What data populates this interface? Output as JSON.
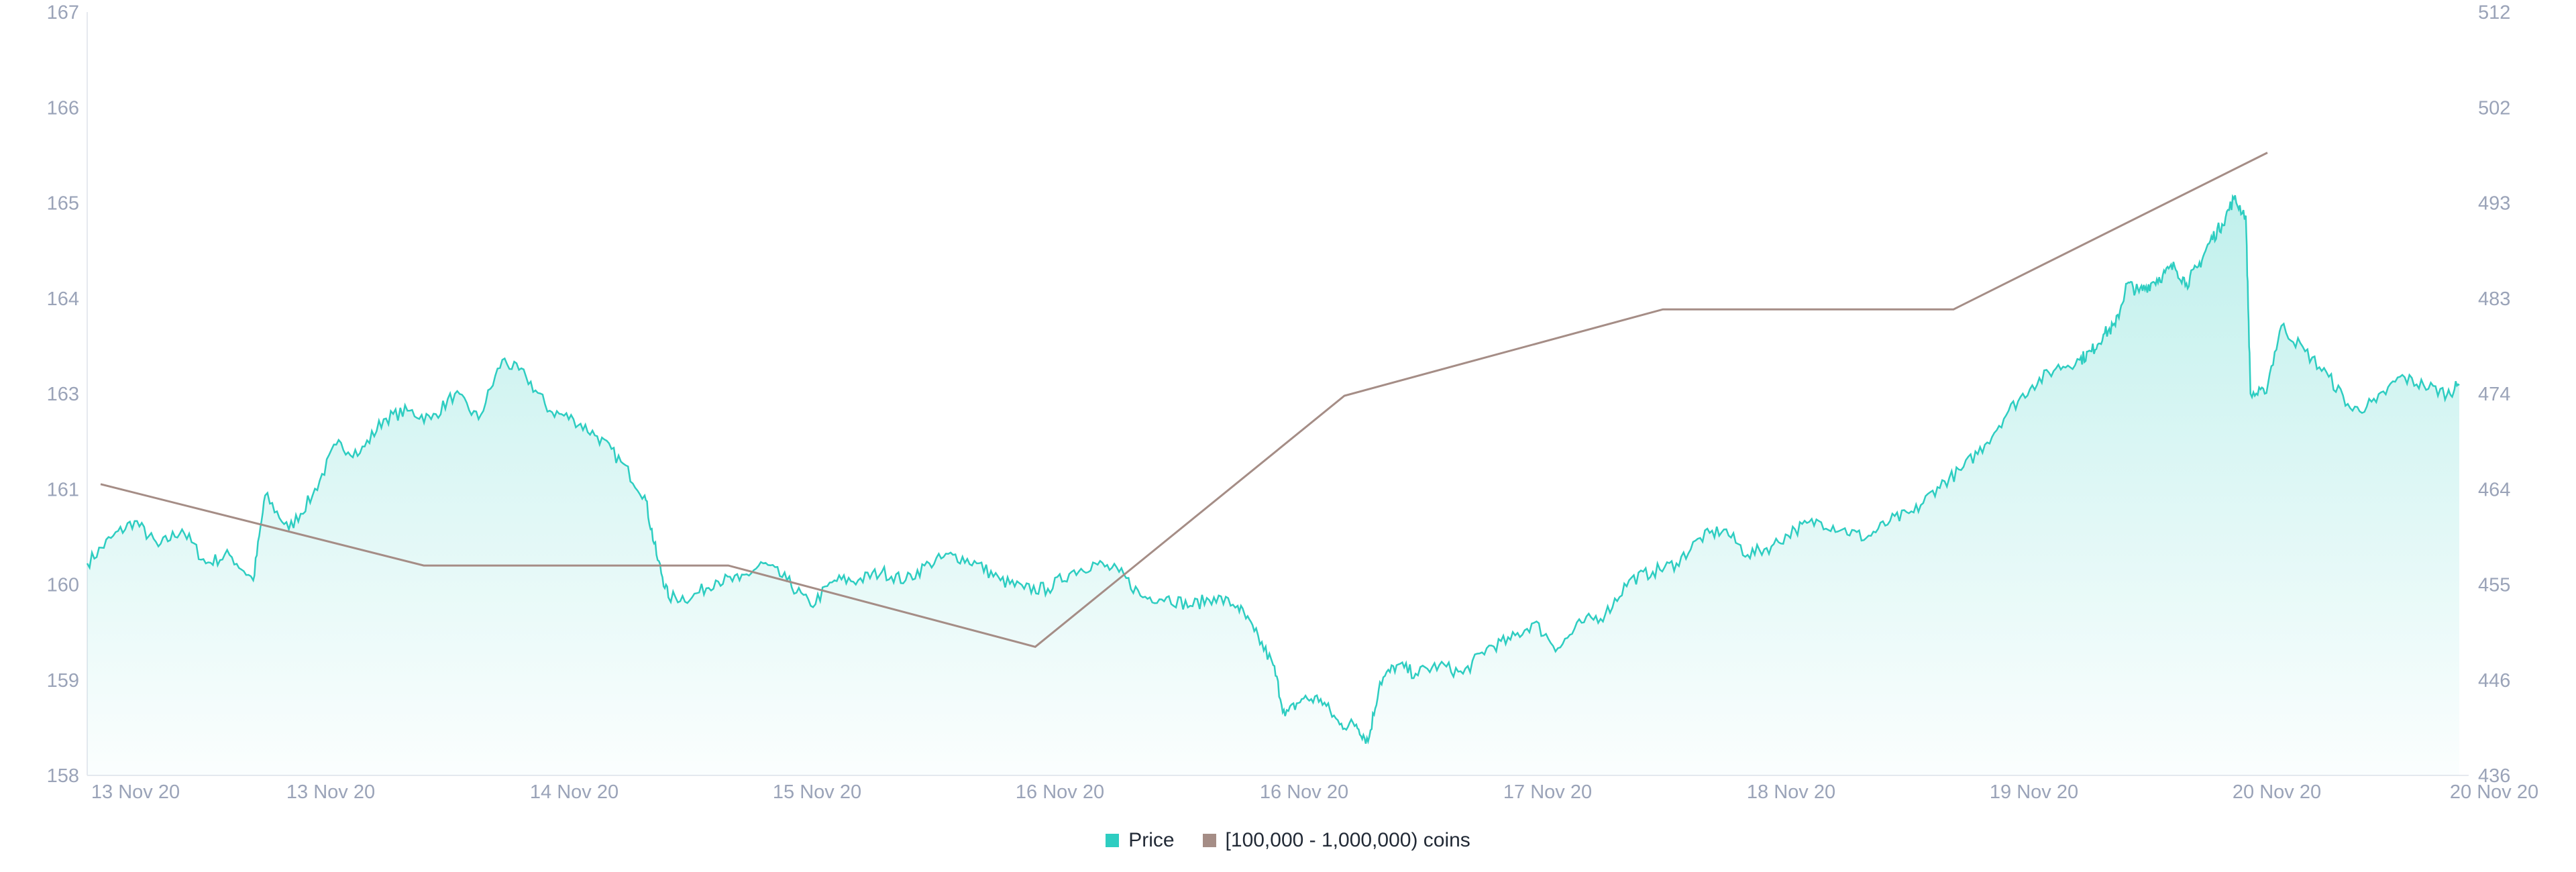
{
  "colors": {
    "price": "#2ecdc1",
    "coins": "#a58d86",
    "axis_text": "#9aa3b8",
    "axis_line": "#e6e9ef"
  },
  "legend": {
    "price_label": "Price",
    "coins_label": "[100,000  - 1,000,000) coins"
  },
  "chart_data": {
    "type": "line",
    "grid": false,
    "legend_position": "bottom-center",
    "x_tick_labels": [
      "13 Nov 20",
      "13 Nov 20",
      "14 Nov 20",
      "15 Nov 20",
      "16 Nov 20",
      "16 Nov 20",
      "17 Nov 20",
      "18 Nov 20",
      "19 Nov 20",
      "20 Nov 20",
      "20 Nov 20"
    ],
    "x_range": [
      0,
      1
    ],
    "y_left": {
      "tick_labels": [
        "167",
        "166",
        "165",
        "164",
        "163",
        "161",
        "160",
        "159",
        "158"
      ],
      "range": [
        158,
        167
      ]
    },
    "y_right": {
      "tick_labels": [
        "512",
        "502",
        "493",
        "483",
        "474",
        "464",
        "455",
        "446",
        "436"
      ],
      "range": [
        436,
        512
      ]
    },
    "series": [
      {
        "name": "Price",
        "axis": "left",
        "style": "area",
        "points": [
          [
            0.0,
            160.5
          ],
          [
            0.01,
            160.8
          ],
          [
            0.02,
            161.0
          ],
          [
            0.03,
            160.7
          ],
          [
            0.04,
            160.9
          ],
          [
            0.05,
            160.5
          ],
          [
            0.06,
            160.6
          ],
          [
            0.07,
            160.3
          ],
          [
            0.075,
            161.3
          ],
          [
            0.085,
            160.9
          ],
          [
            0.095,
            161.3
          ],
          [
            0.105,
            161.9
          ],
          [
            0.115,
            161.8
          ],
          [
            0.125,
            162.2
          ],
          [
            0.135,
            162.3
          ],
          [
            0.145,
            162.2
          ],
          [
            0.155,
            162.5
          ],
          [
            0.165,
            162.2
          ],
          [
            0.175,
            162.9
          ],
          [
            0.185,
            162.7
          ],
          [
            0.195,
            162.3
          ],
          [
            0.205,
            162.2
          ],
          [
            0.215,
            162.0
          ],
          [
            0.225,
            161.7
          ],
          [
            0.235,
            161.3
          ],
          [
            0.24,
            160.6
          ],
          [
            0.245,
            160.1
          ],
          [
            0.255,
            160.1
          ],
          [
            0.265,
            160.3
          ],
          [
            0.275,
            160.3
          ],
          [
            0.285,
            160.5
          ],
          [
            0.295,
            160.3
          ],
          [
            0.305,
            160.0
          ],
          [
            0.315,
            160.3
          ],
          [
            0.325,
            160.3
          ],
          [
            0.335,
            160.4
          ],
          [
            0.345,
            160.3
          ],
          [
            0.355,
            160.5
          ],
          [
            0.365,
            160.6
          ],
          [
            0.375,
            160.5
          ],
          [
            0.385,
            160.3
          ],
          [
            0.395,
            160.2
          ],
          [
            0.405,
            160.2
          ],
          [
            0.415,
            160.4
          ],
          [
            0.425,
            160.5
          ],
          [
            0.435,
            160.4
          ],
          [
            0.445,
            160.1
          ],
          [
            0.455,
            160.1
          ],
          [
            0.465,
            160.0
          ],
          [
            0.475,
            160.1
          ],
          [
            0.485,
            160.0
          ],
          [
            0.492,
            159.7
          ],
          [
            0.5,
            159.3
          ],
          [
            0.505,
            158.7
          ],
          [
            0.512,
            158.9
          ],
          [
            0.52,
            158.9
          ],
          [
            0.528,
            158.6
          ],
          [
            0.535,
            158.6
          ],
          [
            0.54,
            158.4
          ],
          [
            0.545,
            159.1
          ],
          [
            0.552,
            159.3
          ],
          [
            0.56,
            159.2
          ],
          [
            0.57,
            159.3
          ],
          [
            0.58,
            159.2
          ],
          [
            0.59,
            159.5
          ],
          [
            0.6,
            159.6
          ],
          [
            0.61,
            159.8
          ],
          [
            0.62,
            159.5
          ],
          [
            0.63,
            159.8
          ],
          [
            0.64,
            159.9
          ],
          [
            0.65,
            160.3
          ],
          [
            0.66,
            160.4
          ],
          [
            0.67,
            160.5
          ],
          [
            0.68,
            160.8
          ],
          [
            0.69,
            160.9
          ],
          [
            0.7,
            160.6
          ],
          [
            0.71,
            160.7
          ],
          [
            0.72,
            160.9
          ],
          [
            0.73,
            161.0
          ],
          [
            0.74,
            160.9
          ],
          [
            0.75,
            160.8
          ],
          [
            0.76,
            161.0
          ],
          [
            0.77,
            161.1
          ],
          [
            0.78,
            161.4
          ],
          [
            0.79,
            161.6
          ],
          [
            0.8,
            161.9
          ],
          [
            0.81,
            162.3
          ],
          [
            0.82,
            162.6
          ],
          [
            0.83,
            162.8
          ],
          [
            0.84,
            162.9
          ],
          [
            0.845,
            163.0
          ],
          [
            0.85,
            163.2
          ],
          [
            0.855,
            163.3
          ],
          [
            0.86,
            163.8
          ],
          [
            0.865,
            163.7
          ],
          [
            0.87,
            163.8
          ],
          [
            0.875,
            163.9
          ],
          [
            0.88,
            164.0
          ],
          [
            0.885,
            163.8
          ],
          [
            0.89,
            164.0
          ],
          [
            0.895,
            164.3
          ],
          [
            0.9,
            164.5
          ],
          [
            0.905,
            164.8
          ],
          [
            0.91,
            164.6
          ],
          [
            0.912,
            162.5
          ],
          [
            0.918,
            162.5
          ],
          [
            0.925,
            163.3
          ],
          [
            0.935,
            163.0
          ],
          [
            0.945,
            162.7
          ],
          [
            0.955,
            162.3
          ],
          [
            0.965,
            162.4
          ],
          [
            0.975,
            162.7
          ],
          [
            0.985,
            162.6
          ],
          [
            0.995,
            162.5
          ],
          [
            1.0,
            162.6
          ]
        ]
      },
      {
        "name": "[100,000  - 1,000,000) coins",
        "axis": "right",
        "style": "line",
        "points": [
          [
            0.0,
            465.0
          ],
          [
            0.139,
            456.9
          ],
          [
            0.27,
            456.9
          ],
          [
            0.402,
            448.8
          ],
          [
            0.535,
            473.8
          ],
          [
            0.672,
            482.4
          ],
          [
            0.797,
            482.4
          ],
          [
            0.932,
            498.0
          ]
        ]
      }
    ]
  }
}
